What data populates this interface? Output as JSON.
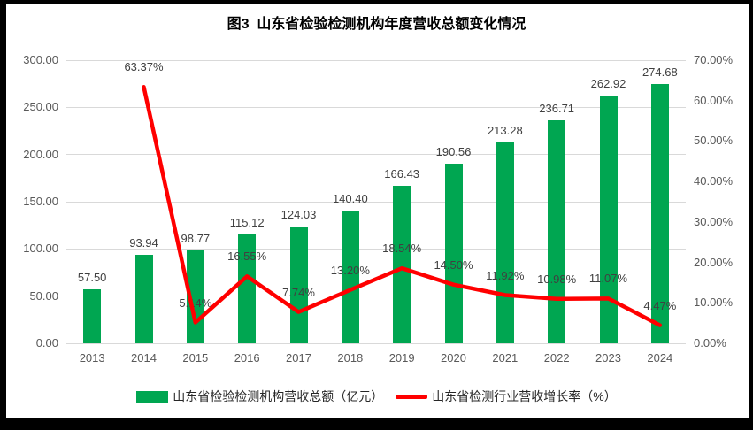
{
  "chart_data": {
    "type": "bar",
    "title": "图3  山东省检验检测机构年度营收总额变化情况",
    "categories": [
      "2013",
      "2014",
      "2015",
      "2016",
      "2017",
      "2018",
      "2019",
      "2020",
      "2021",
      "2022",
      "2023",
      "2024"
    ],
    "series": [
      {
        "name": "山东省检验检测机构营收总额（亿元）",
        "type": "bar",
        "axis": "left",
        "color": "#00A651",
        "values": [
          57.5,
          93.94,
          98.77,
          115.12,
          124.03,
          140.4,
          166.43,
          190.56,
          213.28,
          236.71,
          262.92,
          274.68
        ],
        "labels": [
          "57.50",
          "93.94",
          "98.77",
          "115.12",
          "124.03",
          "140.40",
          "166.43",
          "190.56",
          "213.28",
          "236.71",
          "262.92",
          "274.68"
        ]
      },
      {
        "name": "山东省检测行业营收增长率（%）",
        "type": "line",
        "axis": "right",
        "color": "#FF0000",
        "values": [
          null,
          63.37,
          5.14,
          16.55,
          7.74,
          13.2,
          18.54,
          14.5,
          11.92,
          10.98,
          11.07,
          4.47
        ],
        "labels": [
          "",
          "63.37%",
          "5.14%",
          "16.55%",
          "7.74%",
          "13.20%",
          "18.54%",
          "14.50%",
          "11.92%",
          "10.98%",
          "11.07%",
          "4.47%"
        ]
      }
    ],
    "left_axis": {
      "min": 0,
      "max": 300,
      "step": 50,
      "ticks": [
        "300.00",
        "250.00",
        "200.00",
        "150.00",
        "100.00",
        "50.00",
        "0.00"
      ]
    },
    "right_axis": {
      "min": 0,
      "max": 70,
      "step": 10,
      "ticks": [
        "70.00%",
        "60.00%",
        "50.00%",
        "40.00%",
        "30.00%",
        "20.00%",
        "10.00%",
        "0.00%"
      ]
    },
    "grid": "horizontal",
    "legend_position": "bottom",
    "colors": {
      "grid": "#D9D9D9",
      "axis_text": "#595959",
      "label_text": "#404040",
      "surface": "#FFFFFF",
      "frame": "#000000"
    }
  },
  "legend": {
    "items": [
      {
        "label": "山东省检验检测机构营收总额（亿元）",
        "swatch": "bar",
        "color": "#00A651"
      },
      {
        "label": "山东省检测行业营收增长率（%）",
        "swatch": "line",
        "color": "#FF0000"
      }
    ]
  }
}
